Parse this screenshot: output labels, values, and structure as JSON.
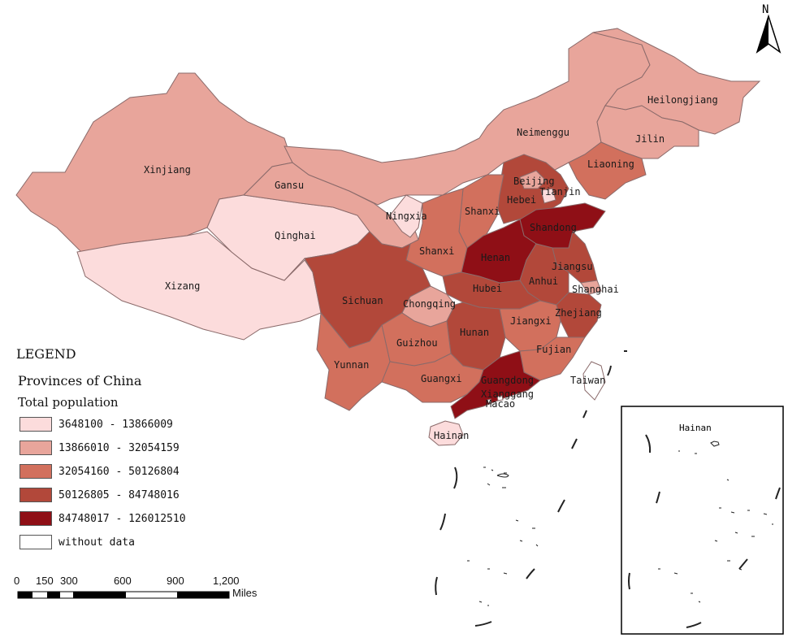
{
  "north_label": "N",
  "legend": {
    "title": "LEGEND",
    "subtitle": "Provinces of China",
    "field": "Total population",
    "classes": [
      {
        "range": "3648100 - 13866009",
        "color": "#fcdcdc"
      },
      {
        "range": "13866010 - 32054159",
        "color": "#e8a59b"
      },
      {
        "range": "32054160 - 50126804",
        "color": "#d2705d"
      },
      {
        "range": "50126805 - 84748016",
        "color": "#b2483a"
      },
      {
        "range": "84748017 - 126012510",
        "color": "#8f0f16"
      },
      {
        "range": "without data",
        "color": "#ffffff"
      }
    ]
  },
  "scale_bar": {
    "ticks": [
      "0",
      "150",
      "300",
      "600",
      "900",
      "1,200"
    ],
    "unit": "Miles"
  },
  "provinces": {
    "xinjiang": {
      "name": "Xinjiang",
      "class": 1
    },
    "xizang": {
      "name": "Xizang",
      "class": 0
    },
    "qinghai": {
      "name": "Qinghai",
      "class": 0
    },
    "gansu": {
      "name": "Gansu",
      "class": 1
    },
    "neimenggu": {
      "name": "Neimenggu",
      "class": 1
    },
    "heilongjiang": {
      "name": "Heilongjiang",
      "class": 1
    },
    "jilin": {
      "name": "Jilin",
      "class": 1
    },
    "liaoning": {
      "name": "Liaoning",
      "class": 2
    },
    "beijing": {
      "name": "Beijing",
      "class": 1
    },
    "tianjin": {
      "name": "Tianjin",
      "class": 0
    },
    "hebei": {
      "name": "Hebei",
      "class": 3
    },
    "ningxia": {
      "name": "Ningxia",
      "class": 0
    },
    "shanxi_n": {
      "name": "Shanxi",
      "class": 2
    },
    "shanxi_w": {
      "name": "Shanxi",
      "class": 2
    },
    "shandong": {
      "name": "Shandong",
      "class": 4
    },
    "henan": {
      "name": "Henan",
      "class": 4
    },
    "jiangsu": {
      "name": "Jiangsu",
      "class": 3
    },
    "anhui": {
      "name": "Anhui",
      "class": 3
    },
    "shanghai": {
      "name": "Shanghai",
      "class": 1
    },
    "hubei": {
      "name": "Hubei",
      "class": 3
    },
    "sichuan": {
      "name": "Sichuan",
      "class": 3
    },
    "chongqing": {
      "name": "Chongqing",
      "class": 1
    },
    "zhejiang": {
      "name": "Zhejiang",
      "class": 3
    },
    "jiangxi": {
      "name": "Jiangxi",
      "class": 2
    },
    "hunan": {
      "name": "Hunan",
      "class": 3
    },
    "guizhou": {
      "name": "Guizhou",
      "class": 2
    },
    "yunnan": {
      "name": "Yunnan",
      "class": 2
    },
    "guangxi": {
      "name": "Guangxi",
      "class": 2
    },
    "fujian": {
      "name": "Fujian",
      "class": 2
    },
    "guangdong": {
      "name": "Guangdong",
      "class": 4
    },
    "hainan": {
      "name": "Hainan",
      "class": 0
    },
    "xianggang": {
      "name": "Xianggang",
      "class": 5
    },
    "macao": {
      "name": "Macao",
      "class": 5
    },
    "taiwan": {
      "name": "Taiwan",
      "class": 5
    }
  },
  "inset_label": "Hainan"
}
